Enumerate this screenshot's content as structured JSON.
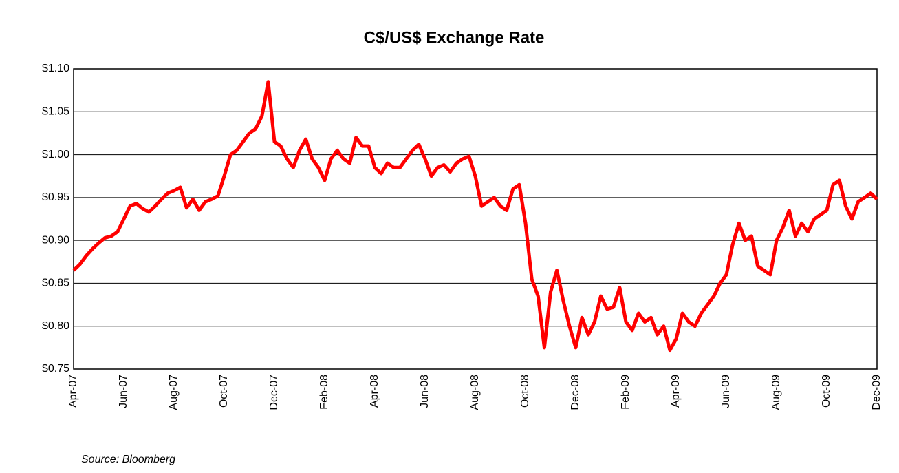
{
  "chart_data": {
    "type": "line",
    "title": "C$/US$ Exchange Rate",
    "annotation": "Source: Bloomberg",
    "categories": [
      "Apr-07",
      null,
      null,
      null,
      null,
      null,
      null,
      null,
      "Jun-07",
      null,
      null,
      null,
      null,
      null,
      null,
      null,
      "Aug-07",
      null,
      null,
      null,
      null,
      null,
      null,
      null,
      "Oct-07",
      null,
      null,
      null,
      null,
      null,
      null,
      null,
      "Dec-07",
      null,
      null,
      null,
      null,
      null,
      null,
      null,
      "Feb-08",
      null,
      null,
      null,
      null,
      null,
      null,
      null,
      "Apr-08",
      null,
      null,
      null,
      null,
      null,
      null,
      null,
      "Jun-08",
      null,
      null,
      null,
      null,
      null,
      null,
      null,
      "Aug-08",
      null,
      null,
      null,
      null,
      null,
      null,
      null,
      "Oct-08",
      null,
      null,
      null,
      null,
      null,
      null,
      null,
      "Dec-08",
      null,
      null,
      null,
      null,
      null,
      null,
      null,
      "Feb-09",
      null,
      null,
      null,
      null,
      null,
      null,
      null,
      "Apr-09",
      null,
      null,
      null,
      null,
      null,
      null,
      null,
      "Jun-09",
      null,
      null,
      null,
      null,
      null,
      null,
      null,
      "Aug-09",
      null,
      null,
      null,
      null,
      null,
      null,
      null,
      "Oct-09",
      null,
      null,
      null,
      null,
      null,
      null,
      null,
      "Dec-09"
    ],
    "series": [
      {
        "name": "C$/US$",
        "color": "#ff0000",
        "values": [
          0.865,
          0.872,
          0.882,
          0.89,
          0.897,
          0.903,
          0.905,
          0.91,
          0.925,
          0.94,
          0.943,
          0.937,
          0.933,
          0.94,
          0.948,
          0.955,
          0.958,
          0.962,
          0.938,
          0.948,
          0.935,
          0.945,
          0.948,
          0.952,
          0.975,
          1.0,
          1.005,
          1.015,
          1.025,
          1.03,
          1.045,
          1.085,
          1.015,
          1.01,
          0.995,
          0.985,
          1.005,
          1.018,
          0.995,
          0.985,
          0.97,
          0.995,
          1.005,
          0.995,
          0.99,
          1.02,
          1.01,
          1.01,
          0.985,
          0.978,
          0.99,
          0.985,
          0.985,
          0.995,
          1.005,
          1.012,
          0.995,
          0.975,
          0.985,
          0.988,
          0.98,
          0.99,
          0.995,
          0.998,
          0.975,
          0.94,
          0.945,
          0.95,
          0.94,
          0.935,
          0.96,
          0.965,
          0.92,
          0.855,
          0.835,
          0.775,
          0.84,
          0.865,
          0.83,
          0.8,
          0.775,
          0.81,
          0.79,
          0.805,
          0.835,
          0.82,
          0.822,
          0.845,
          0.805,
          0.795,
          0.815,
          0.805,
          0.81,
          0.79,
          0.8,
          0.772,
          0.785,
          0.815,
          0.805,
          0.8,
          0.815,
          0.825,
          0.835,
          0.85,
          0.86,
          0.895,
          0.92,
          0.9,
          0.905,
          0.87,
          0.865,
          0.86,
          0.9,
          0.915,
          0.935,
          0.905,
          0.92,
          0.91,
          0.925,
          0.93,
          0.935,
          0.965,
          0.97,
          0.94,
          0.925,
          0.945,
          0.95,
          0.955,
          0.948
        ]
      }
    ],
    "ylim": [
      0.75,
      1.1
    ],
    "yticks": [
      {
        "value": 0.75,
        "label": "$0.75"
      },
      {
        "value": 0.8,
        "label": "$0.80"
      },
      {
        "value": 0.85,
        "label": "$0.85"
      },
      {
        "value": 0.9,
        "label": "$0.90"
      },
      {
        "value": 0.95,
        "label": "$0.95"
      },
      {
        "value": 1.0,
        "label": "$1.00"
      },
      {
        "value": 1.05,
        "label": "$1.05"
      },
      {
        "value": 1.1,
        "label": "$1.10"
      }
    ],
    "grid": true
  }
}
